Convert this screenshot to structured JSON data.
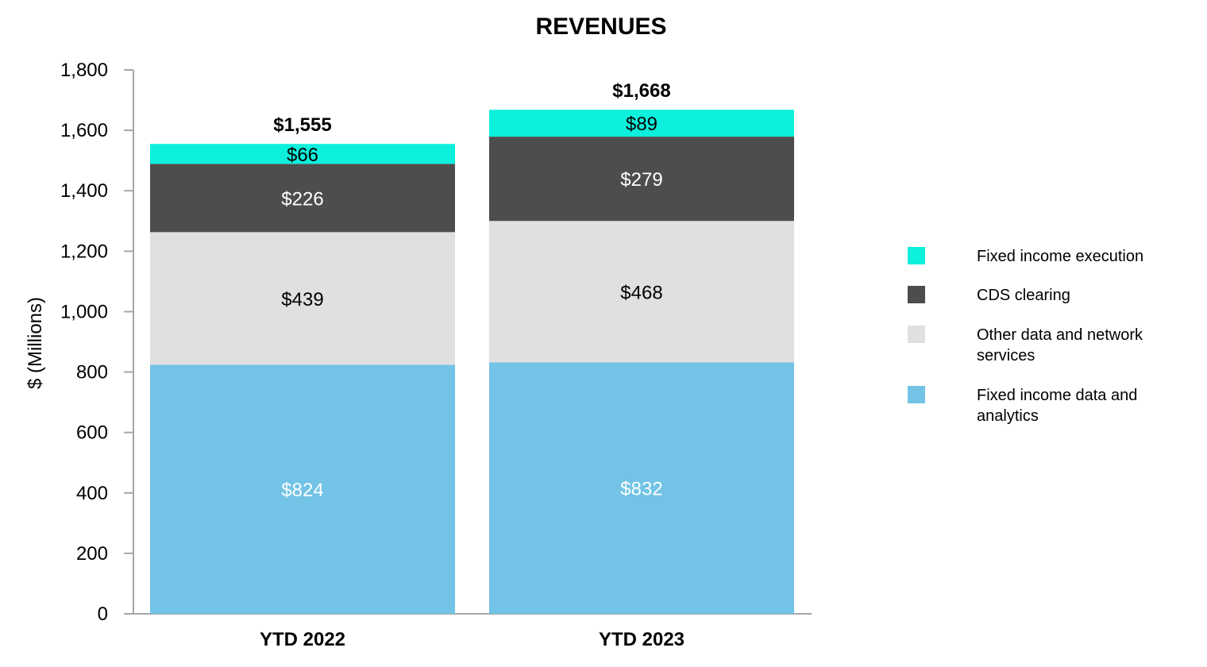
{
  "chart_data": {
    "type": "bar",
    "stacked": true,
    "title": "REVENUES",
    "ylabel": "$ (Millions)",
    "xlabel": "",
    "ylim": [
      0,
      1800
    ],
    "yticks": [
      "0",
      "200",
      "400",
      "600",
      "800",
      "1,000",
      "1,200",
      "1,400",
      "1,600",
      "1,800"
    ],
    "ytick_values": [
      0,
      200,
      400,
      600,
      800,
      1000,
      1200,
      1400,
      1600,
      1800
    ],
    "categories": [
      "YTD 2022",
      "YTD 2023"
    ],
    "totals": [
      1555,
      1668
    ],
    "total_labels": [
      "$1,555",
      "$1,668"
    ],
    "series": [
      {
        "name": "Fixed income data and analytics",
        "legend_lines": [
          "Fixed income data and",
          "analytics"
        ],
        "values": [
          824,
          832
        ],
        "labels": [
          "$824",
          "$832"
        ],
        "color": "#72c3e6",
        "label_color": "#ffffff"
      },
      {
        "name": "Other data and network services",
        "legend_lines": [
          "Other data and network",
          "services"
        ],
        "values": [
          439,
          468
        ],
        "labels": [
          "$439",
          "$468"
        ],
        "color": "#e0e0e0",
        "label_color": "#000000"
      },
      {
        "name": "CDS clearing",
        "legend_lines": [
          "CDS clearing"
        ],
        "values": [
          226,
          279
        ],
        "labels": [
          "$226",
          "$279"
        ],
        "color": "#4d4d4d",
        "label_color": "#ffffff"
      },
      {
        "name": "Fixed income execution",
        "legend_lines": [
          "Fixed income execution"
        ],
        "values": [
          66,
          89
        ],
        "labels": [
          "$66",
          "$89"
        ],
        "color": "#0cf0dc",
        "label_color": "#000000"
      }
    ],
    "grid": false,
    "legend_position": "right"
  }
}
